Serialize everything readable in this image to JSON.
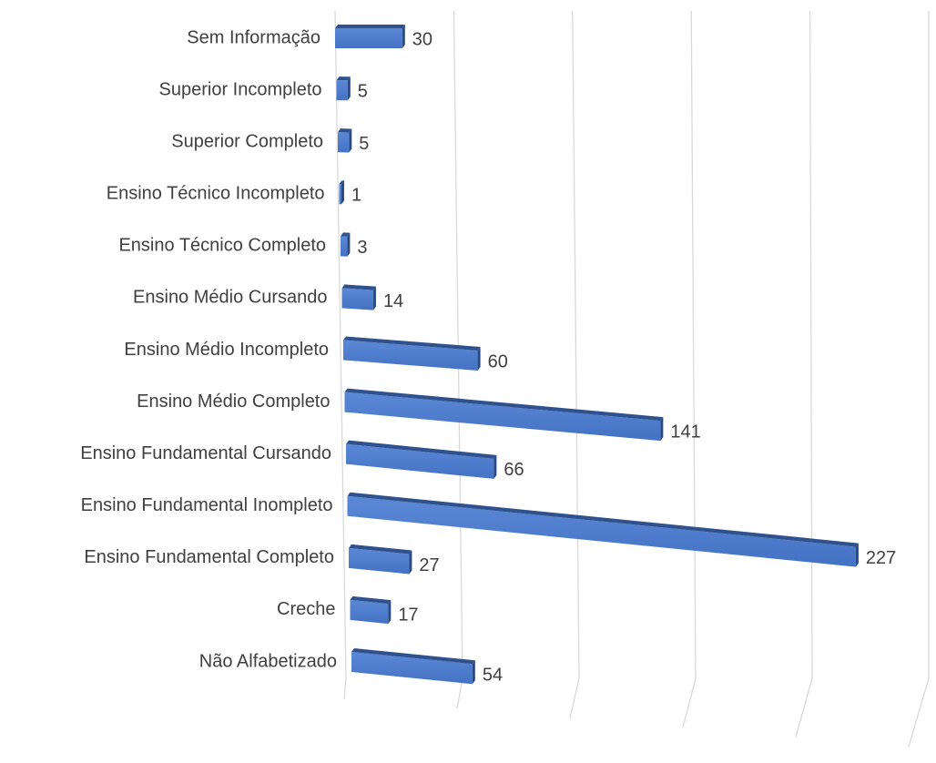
{
  "chart_data": {
    "type": "bar",
    "orientation": "horizontal",
    "categories": [
      "Sem Informação",
      "Superior Incompleto",
      "Superior Completo",
      "Ensino Técnico Incompleto",
      "Ensino Técnico Completo",
      "Ensino Médio Cursando",
      "Ensino Médio Incompleto",
      "Ensino Médio Completo",
      "Ensino Fundamental Cursando",
      "Ensino Fundamental Inompleto",
      "Ensino Fundamental Completo",
      "Creche",
      "Não Alfabetizado"
    ],
    "values": [
      30,
      5,
      5,
      1,
      3,
      14,
      60,
      141,
      66,
      227,
      27,
      17,
      54
    ],
    "color": "#4472c4",
    "xlim": [
      0,
      250
    ],
    "xticks": [
      0,
      50,
      100,
      150,
      200,
      250
    ],
    "grid": true
  }
}
